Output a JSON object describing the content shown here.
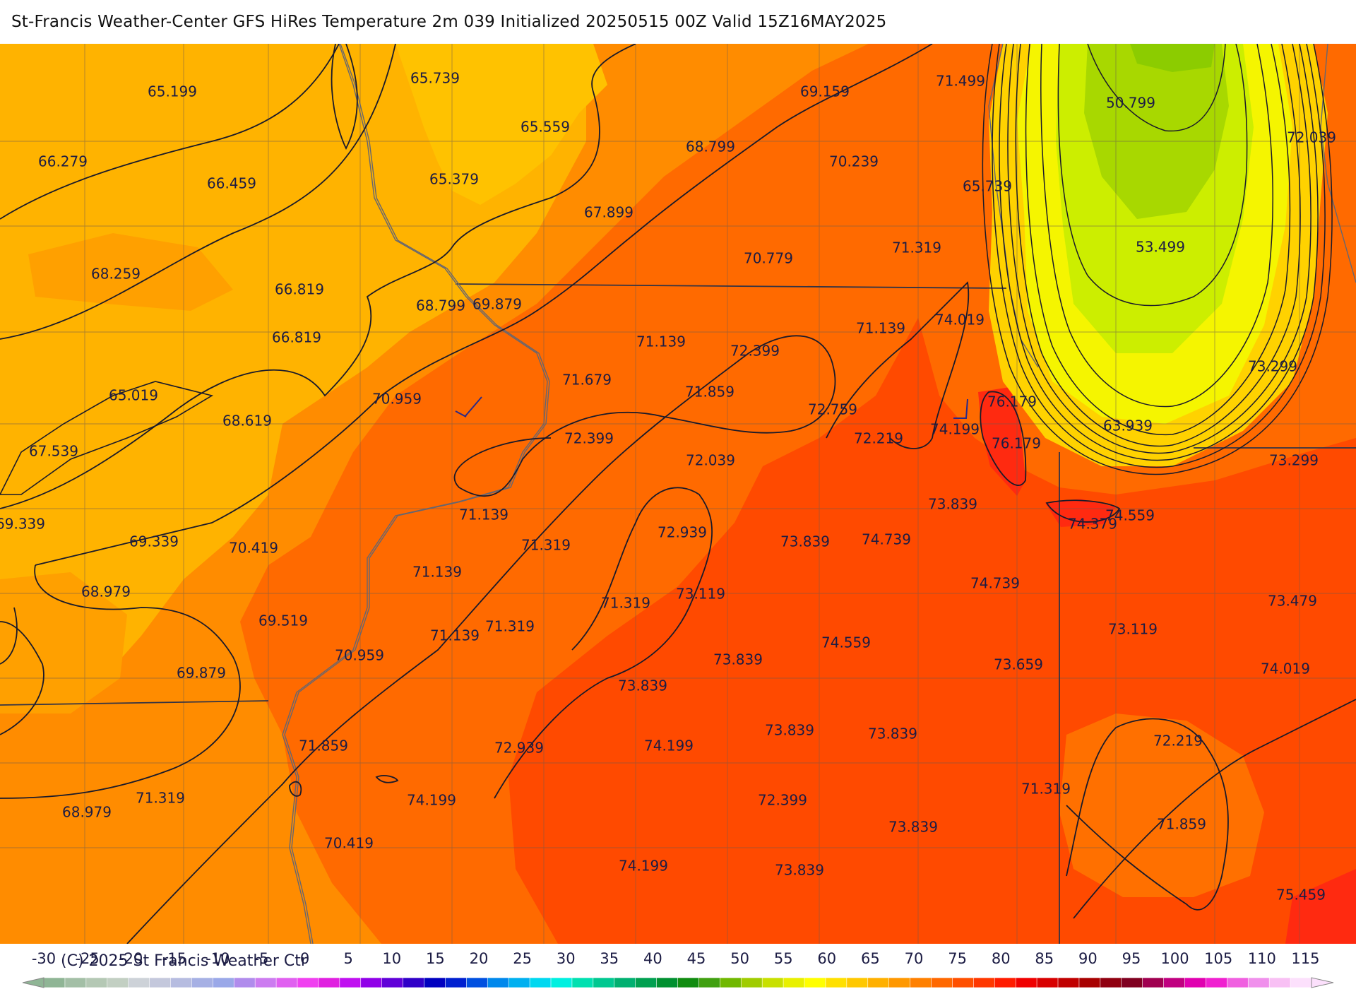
{
  "title": "St-Francis Weather-Center GFS HiRes Temperature 2m  039 Initialized 20250515 00Z Valid 15Z16MAY2025",
  "copyright": "(C) 2025 St Francis Weather Ctr",
  "colors": {
    "band_65_70": "#ffb300",
    "band_70_75": "#ff8c00",
    "band_75_80": "#ff6a00",
    "band_80_85": "#ff4a00",
    "band_85_90": "#ff2a10",
    "yellow": "#f5f500",
    "lime": "#ccee00",
    "green": "#8ccc00",
    "contour": "#1a1a2a",
    "border": "#555566"
  },
  "temperature_labels": [
    {
      "text": "65.199"
    },
    {
      "text": "65.739"
    },
    {
      "text": "69.159"
    },
    {
      "text": "71.499"
    },
    {
      "text": "50.799"
    },
    {
      "text": "72.039"
    },
    {
      "text": "66.279"
    },
    {
      "text": "66.459"
    },
    {
      "text": "65.559"
    },
    {
      "text": "65.379"
    },
    {
      "text": "68.799"
    },
    {
      "text": "70.239"
    },
    {
      "text": "65.739"
    },
    {
      "text": "67.899"
    },
    {
      "text": "53.499"
    },
    {
      "text": "68.259"
    },
    {
      "text": "70.779"
    },
    {
      "text": "71.319"
    },
    {
      "text": "66.819"
    },
    {
      "text": "68.799"
    },
    {
      "text": "69.879"
    },
    {
      "text": "66.819"
    },
    {
      "text": "71.139"
    },
    {
      "text": "72.399"
    },
    {
      "text": "71.139"
    },
    {
      "text": "74.019"
    },
    {
      "text": "73.299"
    },
    {
      "text": "65.019"
    },
    {
      "text": "70.959"
    },
    {
      "text": "71.679"
    },
    {
      "text": "71.859"
    },
    {
      "text": "76.179"
    },
    {
      "text": "68.619"
    },
    {
      "text": "72.759"
    },
    {
      "text": "74.199"
    },
    {
      "text": "63.939"
    },
    {
      "text": "67.539"
    },
    {
      "text": "72.399"
    },
    {
      "text": "72.219"
    },
    {
      "text": "76.179"
    },
    {
      "text": "72.039"
    },
    {
      "text": "73.299"
    },
    {
      "text": "73.839"
    },
    {
      "text": "69.339"
    },
    {
      "text": "71.139"
    },
    {
      "text": "74.379"
    },
    {
      "text": "74.559"
    },
    {
      "text": "69.339"
    },
    {
      "text": "70.419"
    },
    {
      "text": "72.939"
    },
    {
      "text": "73.839"
    },
    {
      "text": "74.739"
    },
    {
      "text": "71.319"
    },
    {
      "text": "71.139"
    },
    {
      "text": "74.739"
    },
    {
      "text": "68.979"
    },
    {
      "text": "73.119"
    },
    {
      "text": "73.479"
    },
    {
      "text": "71.319"
    },
    {
      "text": "73.119"
    },
    {
      "text": "69.519"
    },
    {
      "text": "71.319"
    },
    {
      "text": "71.139"
    },
    {
      "text": "74.559"
    },
    {
      "text": "70.959"
    },
    {
      "text": "73.839"
    },
    {
      "text": "73.659"
    },
    {
      "text": "74.019"
    },
    {
      "text": "69.879"
    },
    {
      "text": "73.839"
    },
    {
      "text": "73.839"
    },
    {
      "text": "73.839"
    },
    {
      "text": "72.219"
    },
    {
      "text": "71.859"
    },
    {
      "text": "74.199"
    },
    {
      "text": "72.939"
    },
    {
      "text": "71.319"
    },
    {
      "text": "71.319"
    },
    {
      "text": "74.199"
    },
    {
      "text": "72.399"
    },
    {
      "text": "68.979"
    },
    {
      "text": "71.859"
    },
    {
      "text": "73.839"
    },
    {
      "text": "70.419"
    },
    {
      "text": "74.199"
    },
    {
      "text": "73.839"
    },
    {
      "text": "75.459"
    }
  ],
  "colorbar": {
    "ticks": [
      "-30",
      "-25",
      "-20",
      "-15",
      "-10",
      "-5",
      "0",
      "5",
      "10",
      "15",
      "20",
      "25",
      "30",
      "35",
      "40",
      "45",
      "50",
      "55",
      "60",
      "65",
      "70",
      "75",
      "80",
      "85",
      "90",
      "95",
      "100",
      "105",
      "110",
      "115"
    ],
    "segment_colors": [
      "#8fb595",
      "#a3bfa6",
      "#b4c8b4",
      "#c2cfc2",
      "#cdd2d8",
      "#c4c8dc",
      "#b6bce0",
      "#a6b0e4",
      "#9aa8e8",
      "#b08cec",
      "#cc7cf0",
      "#e060f0",
      "#f040f0",
      "#e020e0",
      "#c010f0",
      "#9000e8",
      "#6000d8",
      "#3000c8",
      "#0000c0",
      "#0020d0",
      "#0050e0",
      "#0088ec",
      "#00b0f0",
      "#00d8f0",
      "#00f0e0",
      "#00e0b0",
      "#00c890",
      "#00b070",
      "#00a050",
      "#009030",
      "#108c10",
      "#40a010",
      "#70b800",
      "#a0cc00",
      "#c8e000",
      "#e8f000",
      "#ffff00",
      "#ffe000",
      "#ffc800",
      "#ffb000",
      "#ff9800",
      "#ff8000",
      "#ff6800",
      "#ff5000",
      "#ff3800",
      "#ff1c00",
      "#f00000",
      "#d80000",
      "#c00000",
      "#a80000",
      "#900010",
      "#800020",
      "#a00050",
      "#c00080",
      "#e000b0",
      "#f020d0",
      "#f060e0",
      "#f090ec",
      "#f8c0f4",
      "#fce0fc"
    ]
  }
}
